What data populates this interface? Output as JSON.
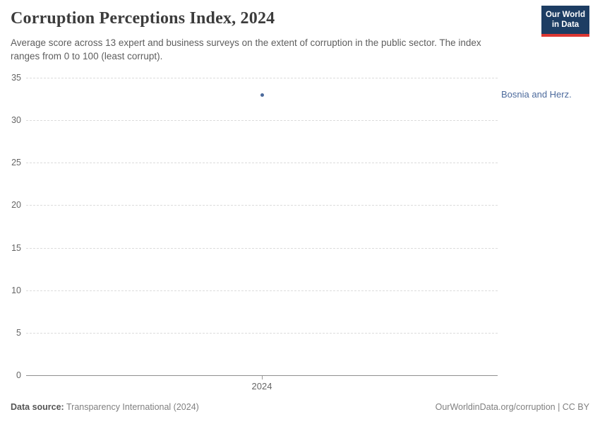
{
  "header": {
    "title": "Corruption Perceptions Index, 2024",
    "subtitle": "Average score across 13 expert and business surveys on the extent of corruption in the public sector. The index ranges from 0 to 100 (least corrupt)."
  },
  "logo": {
    "line1": "Our World",
    "line2": "in Data"
  },
  "chart_data": {
    "type": "scatter",
    "title": "Corruption Perceptions Index, 2024",
    "x": [
      2024
    ],
    "series": [
      {
        "name": "Bosnia and Herz.",
        "values": [
          33
        ],
        "color": "#4c6a9c"
      }
    ],
    "xlabel": "",
    "ylabel": "",
    "ylim": [
      0,
      35
    ],
    "yticks": [
      0,
      5,
      10,
      15,
      20,
      25,
      30,
      35
    ],
    "xticks": [
      "2024"
    ],
    "grid": "horizontal-dashed",
    "legend": "entity-label-right-of-point"
  },
  "colors": {
    "grid": "#dcdcdc",
    "axis": "#8f8f8f",
    "tick_label": "#666666",
    "series": "#4c6a9c",
    "logo_bg": "#1d3d63",
    "logo_accent": "#dc3732"
  },
  "footer": {
    "source_label": "Data source:",
    "source_value": "Transparency International (2024)",
    "credit": "OurWorldinData.org/corruption | CC BY"
  }
}
